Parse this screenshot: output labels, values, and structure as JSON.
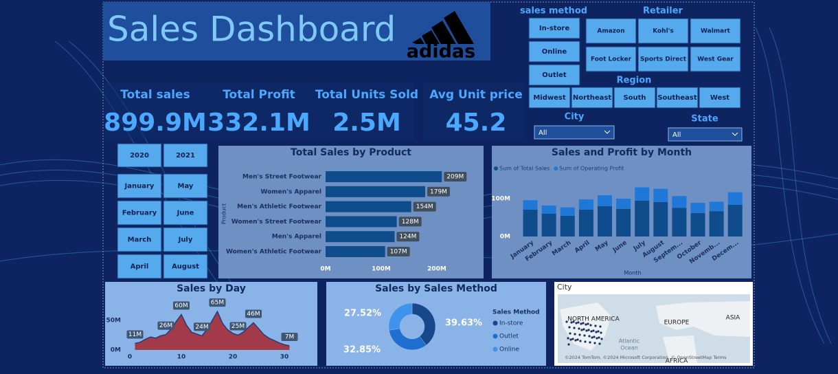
{
  "header": {
    "title": "Sales Dashboard",
    "logo": "adidas"
  },
  "sales_method_filter": {
    "label": "sales method",
    "options": [
      "In-store",
      "Online",
      "Outlet"
    ]
  },
  "retailer_filter": {
    "label": "Retailer",
    "options": [
      "Amazon",
      "Kohl's",
      "Walmart",
      "Foot Locker",
      "Sports Direct",
      "West Gear"
    ]
  },
  "region_filter": {
    "label": "Region",
    "options": [
      "Midwest",
      "Northeast",
      "South",
      "Southeast",
      "West"
    ]
  },
  "city_filter": {
    "label": "City",
    "selected": "All"
  },
  "state_filter": {
    "label": "State",
    "selected": "All"
  },
  "kpis": [
    {
      "label": "Total sales",
      "value": "899.9M"
    },
    {
      "label": "Total Profit",
      "value": "332.1M"
    },
    {
      "label": "Total Units Sold",
      "value": "2.5M"
    },
    {
      "label": "Avg Unit price",
      "value": "45.2"
    }
  ],
  "year_filter": {
    "options": [
      "2020",
      "2021"
    ]
  },
  "month_filter": {
    "options": [
      "January",
      "May",
      "February",
      "June",
      "March",
      "July",
      "April",
      "August"
    ]
  },
  "map": {
    "title": "City",
    "labels": [
      "NORTH AMERICA",
      "EUROPE",
      "ASIA",
      "Atlantic",
      "Ocean",
      "AFRICA"
    ],
    "attribution": "©2024 TomTom, ©2024 Microsoft Corporation, © OpenStreetMap Terms"
  },
  "chart_data": [
    {
      "type": "hbar",
      "title": "Total Sales by Product",
      "y_label": "Product",
      "categories": [
        "Men's Street Footwear",
        "Women's Apparel",
        "Men's Athletic Footwear",
        "Women's Street Footwear",
        "Men's Apparel",
        "Women's Athletic Footwear"
      ],
      "values": [
        209,
        179,
        154,
        128,
        124,
        107
      ],
      "value_labels": [
        "209M",
        "179M",
        "154M",
        "128M",
        "124M",
        "107M"
      ],
      "color": "#0f4c8c",
      "xlim": [
        0,
        250
      ],
      "xticks": [
        {
          "value": 0,
          "label": "0M"
        },
        {
          "value": 100,
          "label": "100M"
        },
        {
          "value": 200,
          "label": "200M"
        }
      ]
    },
    {
      "type": "stacked_bar",
      "title": "Sales and Profit by Month",
      "x_label": "Month",
      "categories": [
        "January",
        "February",
        "March",
        "April",
        "May",
        "June",
        "July",
        "August",
        "Septem...",
        "October",
        "Novemb...",
        "Decem..."
      ],
      "series": [
        {
          "name": "Sum of Total Sales",
          "color": "#0f4c8c",
          "values": [
            71,
            60,
            55,
            71,
            80,
            73,
            95,
            91,
            76,
            62,
            67,
            84
          ]
        },
        {
          "name": "Sum of Operating Profit",
          "color": "#1f78d8",
          "values": [
            25,
            22,
            22,
            27,
            29,
            27,
            35,
            35,
            31,
            27,
            25,
            33
          ]
        }
      ],
      "ylim": [
        0,
        160
      ],
      "yticks": [
        {
          "value": 0,
          "label": "0M"
        },
        {
          "value": 100,
          "label": "100M"
        }
      ]
    },
    {
      "type": "area",
      "title": "Sales by Day",
      "x": [
        1,
        2,
        3,
        4,
        5,
        6,
        7,
        8,
        9,
        10,
        11,
        12,
        13,
        14,
        15,
        16,
        17,
        18,
        19,
        20,
        21,
        22,
        23,
        24,
        25,
        26,
        27,
        28,
        29,
        30,
        31
      ],
      "values": [
        11,
        13,
        18,
        22,
        20,
        24,
        26,
        35,
        48,
        60,
        42,
        30,
        27,
        24,
        35,
        50,
        65,
        45,
        34,
        28,
        25,
        30,
        38,
        46,
        36,
        26,
        20,
        16,
        12,
        9,
        7
      ],
      "value_labels": [
        "11M",
        null,
        null,
        null,
        null,
        null,
        "26M",
        null,
        null,
        "60M",
        null,
        null,
        null,
        "24M",
        null,
        null,
        "65M",
        null,
        null,
        null,
        "25M",
        null,
        null,
        "46M",
        null,
        null,
        null,
        null,
        null,
        null,
        "7M"
      ],
      "color": "#a33a4a",
      "line_color": "#1d3f7a",
      "xlim": [
        0,
        32
      ],
      "xticks": [
        0,
        10,
        20,
        30
      ],
      "ylim": [
        0,
        75
      ],
      "yticks": [
        {
          "value": 0,
          "label": "0M"
        },
        {
          "value": 50,
          "label": "50M"
        }
      ]
    },
    {
      "type": "donut",
      "title": "Sales by Sales Method",
      "legend_title": "Sales Method",
      "categories": [
        "In-store",
        "Outlet",
        "Online"
      ],
      "values": [
        39.63,
        32.85,
        27.52
      ],
      "value_labels": [
        "39.63%",
        "32.85%",
        "27.52%"
      ],
      "colors": [
        "#16488a",
        "#1f6fd0",
        "#3f93ea"
      ]
    }
  ]
}
